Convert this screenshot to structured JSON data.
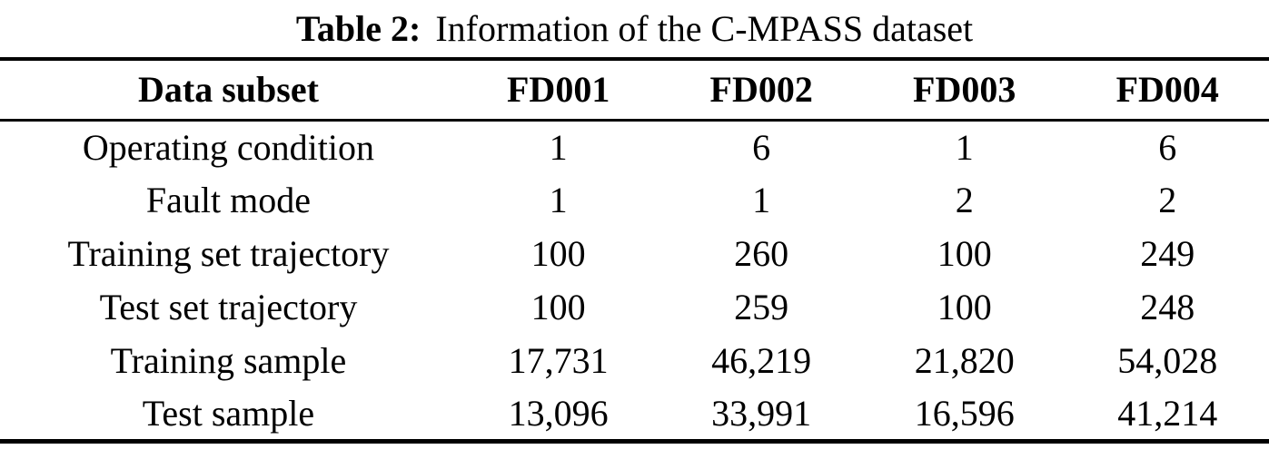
{
  "caption": {
    "label": "Table 2:",
    "text": "Information of the C-MPASS dataset"
  },
  "table": {
    "header": [
      "Data subset",
      "FD001",
      "FD002",
      "FD003",
      "FD004"
    ],
    "rows": [
      {
        "label": "Operating condition",
        "values": [
          "1",
          "6",
          "1",
          "6"
        ]
      },
      {
        "label": "Fault mode",
        "values": [
          "1",
          "1",
          "2",
          "2"
        ]
      },
      {
        "label": "Training set trajectory",
        "values": [
          "100",
          "260",
          "100",
          "249"
        ]
      },
      {
        "label": "Test set trajectory",
        "values": [
          "100",
          "259",
          "100",
          "248"
        ]
      },
      {
        "label": "Training sample",
        "values": [
          "17,731",
          "46,219",
          "21,820",
          "54,028"
        ]
      },
      {
        "label": "Test sample",
        "values": [
          "13,096",
          "33,991",
          "16,596",
          "41,214"
        ]
      }
    ]
  },
  "colors": {
    "text": "#000000",
    "background": "#ffffff",
    "rule": "#000000"
  }
}
